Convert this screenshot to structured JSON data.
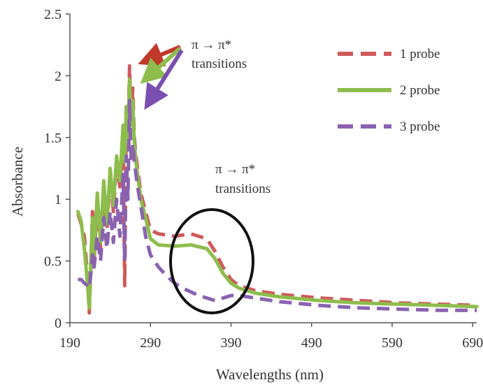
{
  "chart_data": {
    "type": "line",
    "title": "",
    "xlabel": "Wavelengths (nm)",
    "ylabel": "Absorbance",
    "xlim": [
      190,
      695
    ],
    "ylim": [
      0,
      2.5
    ],
    "xticks": [
      "190",
      "290",
      "390",
      "490",
      "590",
      "690"
    ],
    "yticks": [
      "0",
      "0.5",
      "1",
      "1.5",
      "2",
      "2.5"
    ],
    "grid": false,
    "legend_position": "top-right",
    "annotations": [
      {
        "line1": "π → π*",
        "line2": "transitions"
      },
      {
        "line1": "π → π*",
        "line2": "transitions"
      }
    ],
    "series": [
      {
        "name": "1 probe",
        "color": "#cf5a5a",
        "style": "dashed",
        "x": [
          200,
          204,
          208,
          212,
          214,
          216,
          218,
          220,
          224,
          228,
          232,
          236,
          240,
          244,
          248,
          252,
          256,
          258,
          260,
          262,
          264,
          266,
          268,
          270,
          272,
          274,
          278,
          284,
          290,
          300,
          320,
          340,
          360,
          370,
          380,
          390,
          400,
          420,
          450,
          500,
          550,
          600,
          650,
          695
        ],
        "y": [
          0.88,
          0.8,
          0.7,
          0.35,
          0.08,
          0.45,
          0.9,
          0.5,
          1.0,
          0.6,
          1.1,
          0.75,
          1.2,
          0.9,
          1.3,
          1.1,
          1.5,
          0.3,
          1.7,
          1.4,
          2.08,
          1.6,
          1.9,
          1.5,
          1.35,
          1.25,
          1.05,
          0.9,
          0.75,
          0.72,
          0.7,
          0.72,
          0.68,
          0.58,
          0.45,
          0.35,
          0.3,
          0.26,
          0.23,
          0.2,
          0.18,
          0.16,
          0.15,
          0.14
        ]
      },
      {
        "name": "2 probe",
        "color": "#8dbd4c",
        "style": "solid",
        "x": [
          200,
          204,
          208,
          212,
          214,
          216,
          218,
          220,
          224,
          228,
          232,
          236,
          240,
          244,
          248,
          252,
          256,
          258,
          260,
          262,
          264,
          266,
          268,
          270,
          272,
          274,
          278,
          284,
          290,
          300,
          320,
          340,
          360,
          370,
          380,
          390,
          400,
          420,
          450,
          500,
          550,
          600,
          650,
          695
        ],
        "y": [
          0.9,
          0.82,
          0.6,
          0.3,
          0.12,
          0.5,
          0.85,
          0.55,
          1.05,
          0.65,
          1.15,
          0.8,
          1.25,
          0.95,
          1.35,
          1.15,
          1.6,
          1.3,
          1.75,
          1.5,
          1.97,
          1.6,
          1.8,
          1.45,
          1.3,
          1.2,
          1.0,
          0.85,
          0.68,
          0.63,
          0.62,
          0.63,
          0.6,
          0.52,
          0.4,
          0.32,
          0.28,
          0.24,
          0.21,
          0.18,
          0.16,
          0.15,
          0.14,
          0.13
        ]
      },
      {
        "name": "3 probe",
        "color": "#8a62b0",
        "style": "dashed",
        "x": [
          200,
          204,
          208,
          212,
          214,
          216,
          218,
          220,
          224,
          228,
          232,
          236,
          240,
          244,
          248,
          252,
          256,
          258,
          260,
          262,
          264,
          266,
          268,
          270,
          272,
          274,
          278,
          284,
          290,
          300,
          310,
          320,
          330,
          340,
          350,
          360,
          370,
          380,
          390,
          400,
          420,
          450,
          500,
          550,
          600,
          650,
          695
        ],
        "y": [
          0.35,
          0.35,
          0.32,
          0.3,
          0.28,
          0.4,
          0.55,
          0.45,
          0.7,
          0.5,
          0.85,
          0.6,
          0.9,
          0.65,
          1.0,
          0.7,
          1.2,
          0.5,
          1.35,
          1.0,
          1.8,
          1.3,
          1.45,
          1.3,
          1.2,
          1.1,
          0.95,
          0.7,
          0.55,
          0.45,
          0.38,
          0.32,
          0.28,
          0.25,
          0.22,
          0.2,
          0.18,
          0.2,
          0.22,
          0.22,
          0.2,
          0.17,
          0.14,
          0.12,
          0.11,
          0.1,
          0.1
        ]
      }
    ]
  }
}
